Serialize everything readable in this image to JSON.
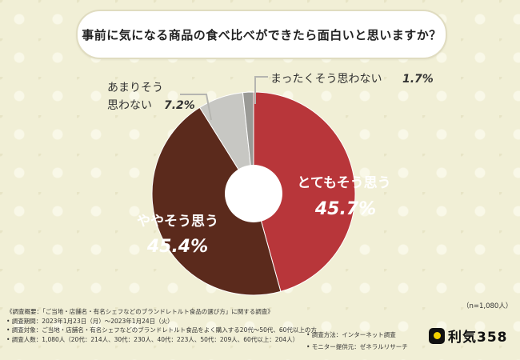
{
  "title": "事前に気になる商品の食べ比べができたら面白いと思いますか？",
  "chart_data": {
    "type": "pie",
    "categories": [
      "とてもそう思う",
      "ややそう思う",
      "あまりそう思わない",
      "まったくそう思わない"
    ],
    "values": [
      45.7,
      45.4,
      7.2,
      1.7
    ],
    "value_labels": [
      "45.7%",
      "45.4%",
      "7.2%",
      "1.7%"
    ],
    "colors": [
      "#b8363a",
      "#5b2a1c",
      "#c7c7c3",
      "#9a9a96"
    ],
    "donut": true
  },
  "labels": {
    "very": "とてもそう思う",
    "very_value": "45.7%",
    "somewhat": "ややそう思う",
    "somewhat_value": "45.4%",
    "not_much_line1": "あまりそう",
    "not_much_line2": "思わない",
    "not_much_value": "7.2%",
    "not_at_all": "まったくそう思わない",
    "not_at_all_value": "1.7%"
  },
  "sample_size": "（n=1,080人）",
  "footer": {
    "overview": "《調査概要：「ご当地・店舗名・有名シェフなどのブランドレトルト食品の選び方」に関する調査》",
    "period": "• 調査期間：2023年1月23日（月）〜2023年1月24日（火）",
    "method": "• 調査方法：インターネット調査",
    "target": "• 調査対象：ご当地・店舗名・有名シェフなどのブランドレトルト食品をよく購入する20代〜50代、60代以上の方",
    "count": "• 調査人数：1,080人（20代：214人、30代：230人、40代：223人、50代：209人、60代以上：204人）",
    "provider": "• モニター提供元：ゼネラルリサーチ"
  },
  "brand": "利気358"
}
